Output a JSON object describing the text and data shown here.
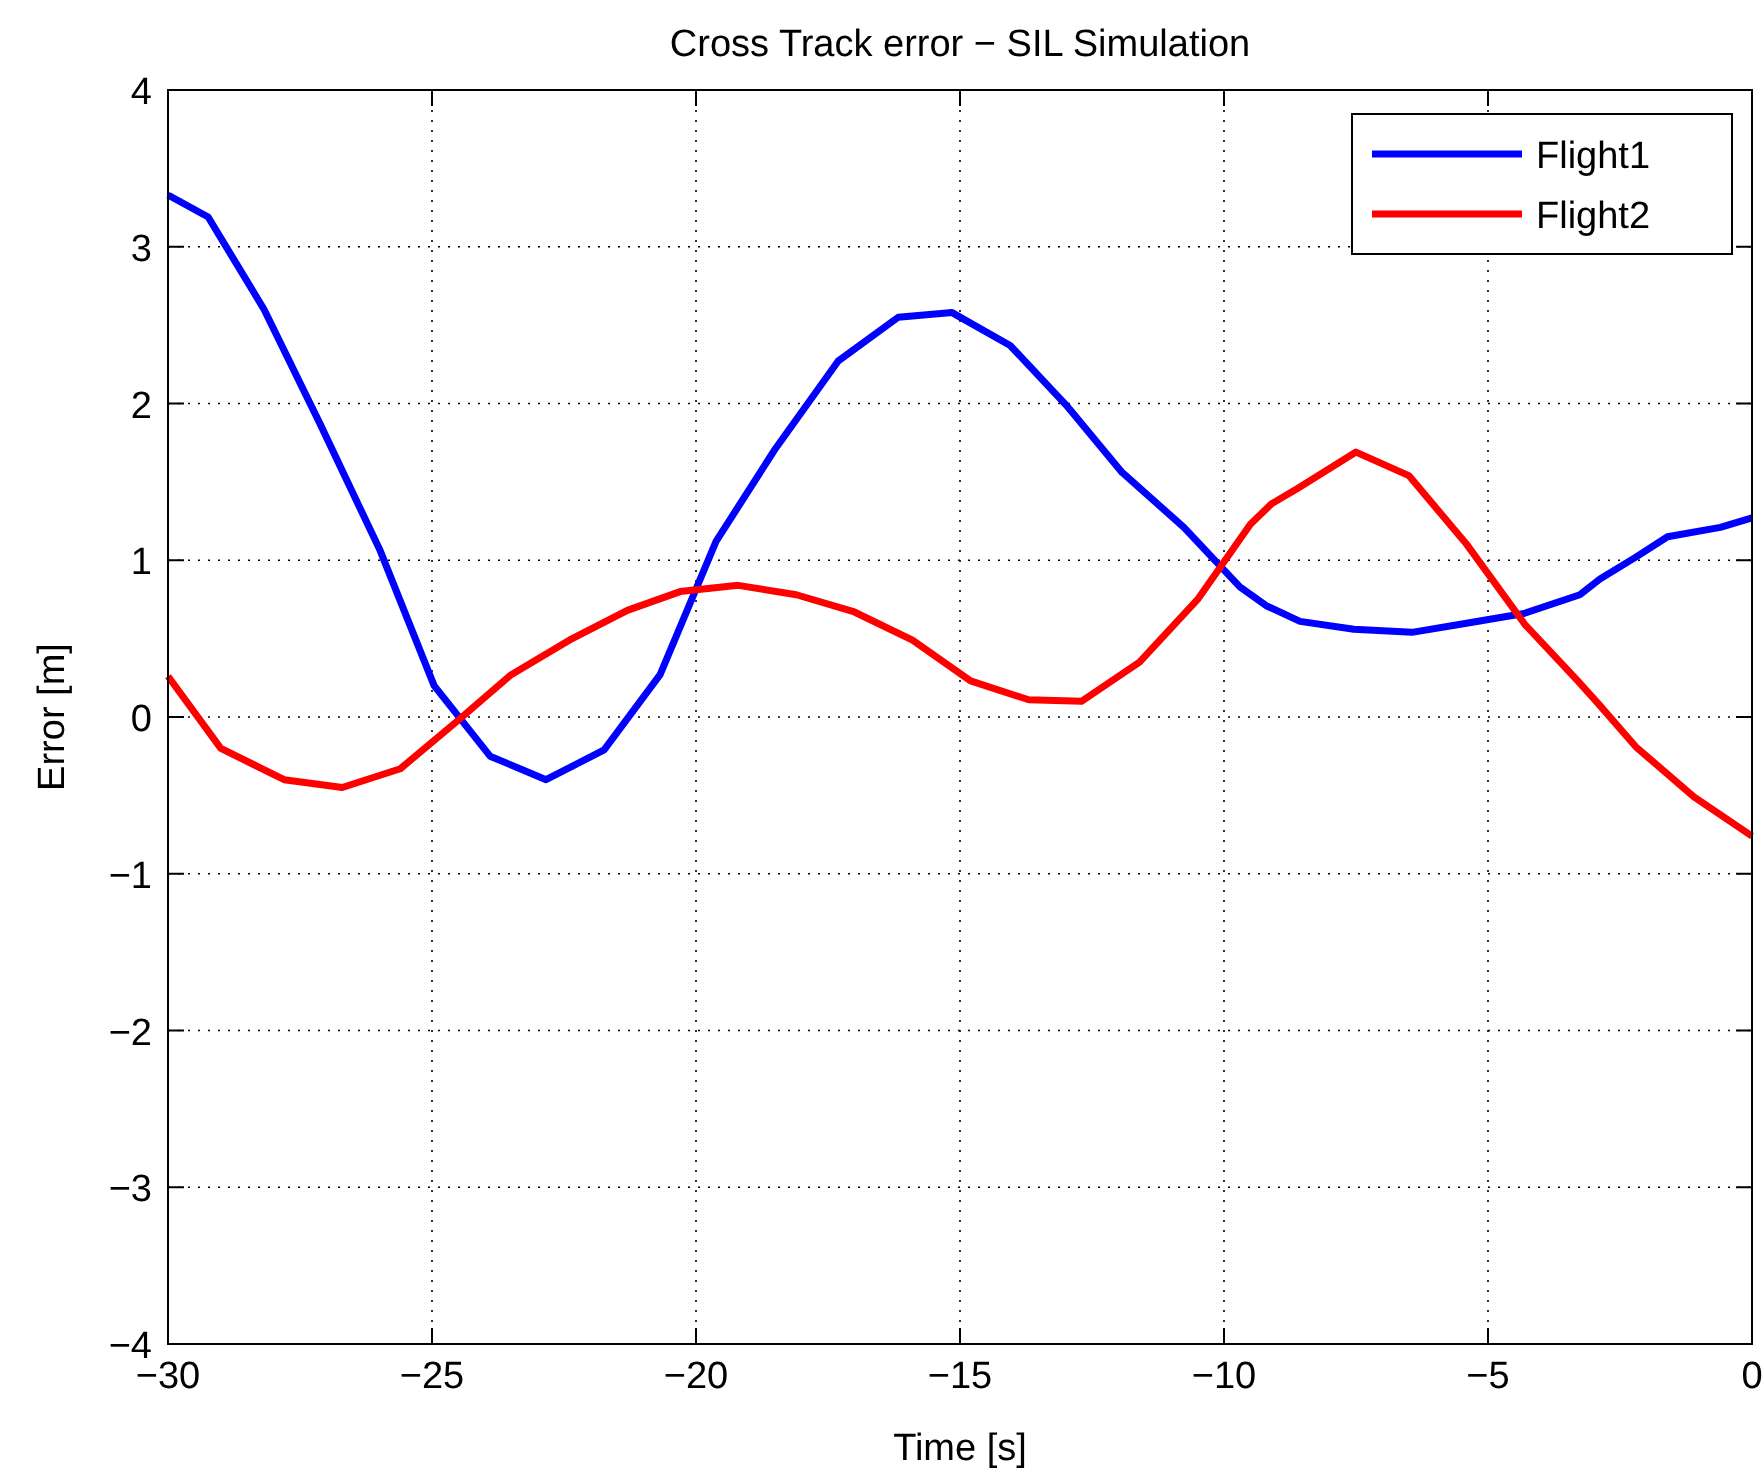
{
  "chart_data": {
    "type": "line",
    "title": "Cross Track error − SIL Simulation",
    "xlabel": "Time [s]",
    "ylabel": "Error [m]",
    "xlim": [
      -30,
      0
    ],
    "ylim": [
      -4,
      4
    ],
    "xticks": [
      -30,
      -25,
      -20,
      -15,
      -10,
      -5,
      0
    ],
    "yticks": [
      -4,
      -3,
      -2,
      -1,
      0,
      1,
      2,
      3,
      4
    ],
    "grid": true,
    "legend": "top right",
    "line_style": "solid",
    "marker": "none",
    "series": [
      {
        "name": "Flight1",
        "color": "#0000ff",
        "x": [
          -30,
          -29.24,
          -28.18,
          -27.12,
          -25.98,
          -24.96,
          -23.9,
          -22.84,
          -21.74,
          -20.68,
          -19.62,
          -18.52,
          -17.31,
          -16.17,
          -15.15,
          -14.05,
          -12.99,
          -11.93,
          -10.76,
          -9.7,
          -9.2,
          -8.56,
          -7.54,
          -6.44,
          -5.38,
          -4.32,
          -3.26,
          -2.88,
          -2.2,
          -1.6,
          -0.6,
          0
        ],
        "values": [
          3.33,
          3.19,
          2.6,
          1.87,
          1.06,
          0.2,
          -0.25,
          -0.4,
          -0.21,
          0.27,
          1.12,
          1.7,
          2.27,
          2.55,
          2.58,
          2.37,
          1.99,
          1.56,
          1.21,
          0.83,
          0.71,
          0.61,
          0.56,
          0.54,
          0.6,
          0.66,
          0.78,
          0.88,
          1.02,
          1.15,
          1.21,
          1.27
        ]
      },
      {
        "name": "Flight2",
        "color": "#ff0000",
        "x": [
          -30,
          -29,
          -27.8,
          -26.7,
          -25.6,
          -24.5,
          -23.5,
          -22.4,
          -21.3,
          -20.3,
          -19.2,
          -18.1,
          -17,
          -15.9,
          -14.8,
          -13.7,
          -12.7,
          -11.6,
          -10.5,
          -9.5,
          -9.1,
          -8.6,
          -7.5,
          -6.5,
          -5.4,
          -4.3,
          -3.3,
          -2.9,
          -2.2,
          -1.1,
          0
        ],
        "values": [
          0.26,
          -0.2,
          -0.4,
          -0.45,
          -0.33,
          -0.02,
          0.27,
          0.49,
          0.68,
          0.8,
          0.84,
          0.78,
          0.67,
          0.49,
          0.23,
          0.11,
          0.1,
          0.35,
          0.75,
          1.23,
          1.36,
          1.46,
          1.69,
          1.54,
          1.1,
          0.59,
          0.23,
          0.08,
          -0.19,
          -0.51,
          -0.76
        ]
      }
    ]
  }
}
